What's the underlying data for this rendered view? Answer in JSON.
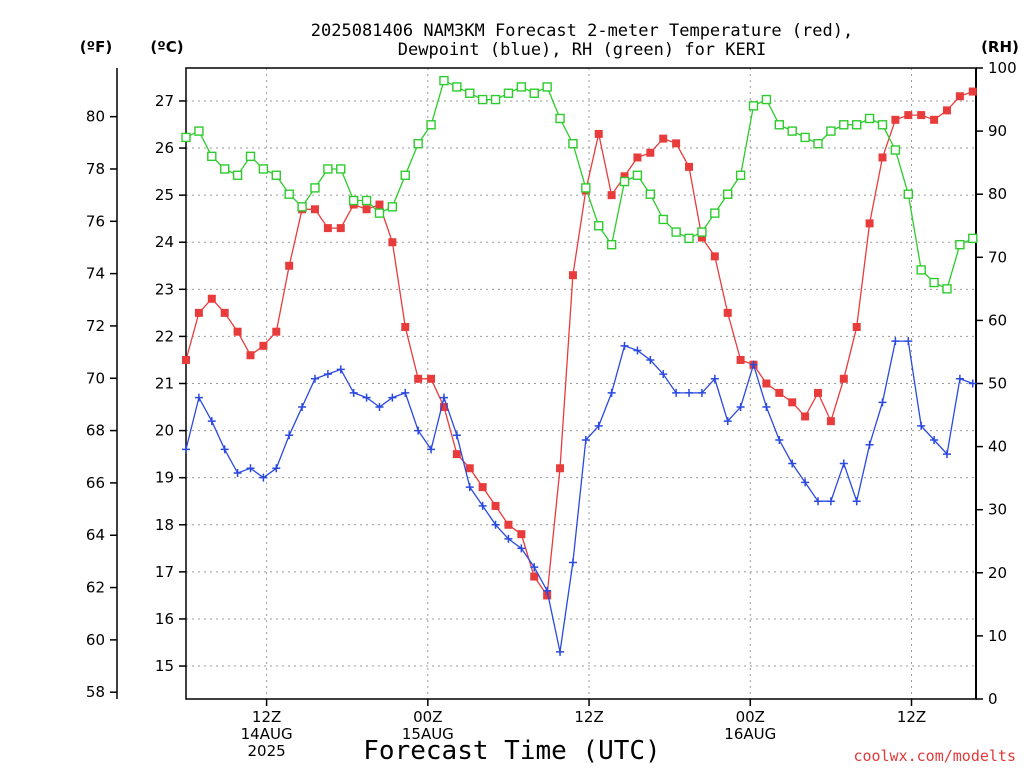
{
  "chart_data": {
    "type": "line",
    "title_line1": "2025081406 NAM3KM Forecast 2-meter Temperature (red),",
    "title_line2": "Dewpoint (blue), RH (green) for KERI",
    "xlabel": "Forecast Time (UTC)",
    "credit": "coolwx.com/modelts",
    "axes": {
      "fahrenheit": {
        "unit_label": "(ºF)",
        "ticks": [
          58,
          60,
          62,
          64,
          66,
          68,
          70,
          72,
          74,
          76,
          78,
          80
        ]
      },
      "celsius": {
        "unit_label": "(ºC)",
        "ticks": [
          15,
          16,
          17,
          18,
          19,
          20,
          21,
          22,
          23,
          24,
          25,
          26,
          27
        ],
        "ylim": [
          14.3,
          27.7
        ]
      },
      "rh": {
        "unit_label": "(RH)",
        "ticks": [
          0,
          10,
          20,
          30,
          40,
          50,
          60,
          70,
          80,
          90,
          100
        ],
        "ylim": [
          0,
          100
        ]
      }
    },
    "x_range_hours": [
      13,
      62
    ],
    "x_ticks": [
      {
        "hour": 18,
        "lines": [
          "12Z",
          "14AUG",
          "2025"
        ]
      },
      {
        "hour": 28,
        "lines": [
          "00Z",
          "15AUG"
        ]
      },
      {
        "hour": 38,
        "lines": [
          "12Z"
        ]
      },
      {
        "hour": 48,
        "lines": [
          "00Z",
          "16AUG"
        ]
      },
      {
        "hour": 58,
        "lines": [
          "12Z"
        ]
      }
    ],
    "grid": true,
    "series": [
      {
        "name": "Temperature",
        "unit": "C",
        "color": "#e83c3c",
        "marker": "filled-square",
        "hours": [
          13,
          13.8,
          14.6,
          15.4,
          16.2,
          17,
          17.8,
          18.6,
          19.4,
          20.2,
          21,
          21.8,
          22.6,
          23.4,
          24.2,
          25,
          25.8,
          26.6,
          27.4,
          28.2,
          29,
          29.8,
          30.6,
          31.4,
          32.2,
          33,
          33.8,
          34.6,
          35.4,
          36.2,
          37,
          37.8,
          38.6,
          39.4,
          40.2,
          41,
          41.8,
          42.6,
          43.4,
          44.2,
          45,
          45.8,
          46.6,
          47.4,
          48.2,
          49,
          49.8,
          50.6,
          51.4,
          52.2,
          53,
          53.8,
          54.6,
          55.4,
          56.2,
          57,
          57.8,
          58.6,
          59.4,
          60.2,
          61,
          61.8
        ],
        "values": [
          21.5,
          22.5,
          22.8,
          22.5,
          22.1,
          21.6,
          21.8,
          22.1,
          23.5,
          24.7,
          24.7,
          24.3,
          24.3,
          24.8,
          24.7,
          24.8,
          24.0,
          22.2,
          21.1,
          21.1,
          20.5,
          19.5,
          19.2,
          18.8,
          18.4,
          18.0,
          17.8,
          16.9,
          16.5,
          19.2,
          23.3,
          25.1,
          26.3,
          25.0,
          25.4,
          25.8,
          25.9,
          26.2,
          26.1,
          25.6,
          24.1,
          23.7,
          22.5,
          21.5,
          21.4,
          21.0,
          20.8,
          20.6,
          20.3,
          20.8,
          20.2,
          21.1,
          22.2,
          24.4,
          25.8,
          26.6,
          26.7,
          26.7,
          26.6,
          26.8,
          27.1,
          27.2
        ]
      },
      {
        "name": "Dewpoint",
        "unit": "C",
        "color": "#2a49e0",
        "marker": "plus",
        "hours": [
          13,
          13.8,
          14.6,
          15.4,
          16.2,
          17,
          17.8,
          18.6,
          19.4,
          20.2,
          21,
          21.8,
          22.6,
          23.4,
          24.2,
          25,
          25.8,
          26.6,
          27.4,
          28.2,
          29,
          29.8,
          30.6,
          31.4,
          32.2,
          33,
          33.8,
          34.6,
          35.4,
          36.2,
          37,
          37.8,
          38.6,
          39.4,
          40.2,
          41,
          41.8,
          42.6,
          43.4,
          44.2,
          45,
          45.8,
          46.6,
          47.4,
          48.2,
          49,
          49.8,
          50.6,
          51.4,
          52.2,
          53,
          53.8,
          54.6,
          55.4,
          56.2,
          57,
          57.8,
          58.6,
          59.4,
          60.2,
          61,
          61.8
        ],
        "values": [
          19.6,
          20.7,
          20.2,
          19.6,
          19.1,
          19.2,
          19.0,
          19.2,
          19.9,
          20.5,
          21.1,
          21.2,
          21.3,
          20.8,
          20.7,
          20.5,
          20.7,
          20.8,
          20.0,
          19.6,
          20.7,
          19.9,
          18.8,
          18.4,
          18.0,
          17.7,
          17.5,
          17.1,
          16.6,
          15.3,
          17.2,
          19.8,
          20.1,
          20.8,
          21.8,
          21.7,
          21.5,
          21.2,
          20.8,
          20.8,
          20.8,
          21.1,
          20.2,
          20.5,
          21.4,
          20.5,
          19.8,
          19.3,
          18.9,
          18.5,
          18.5,
          19.3,
          18.5,
          19.7,
          20.6,
          21.9,
          21.9,
          20.1,
          19.8,
          19.5,
          21.1,
          21.0
        ]
      },
      {
        "name": "RH",
        "unit": "%",
        "color": "#2ccc2c",
        "marker": "open-square",
        "hours": [
          13,
          13.8,
          14.6,
          15.4,
          16.2,
          17,
          17.8,
          18.6,
          19.4,
          20.2,
          21,
          21.8,
          22.6,
          23.4,
          24.2,
          25,
          25.8,
          26.6,
          27.4,
          28.2,
          29,
          29.8,
          30.6,
          31.4,
          32.2,
          33,
          33.8,
          34.6,
          35.4,
          36.2,
          37,
          37.8,
          38.6,
          39.4,
          40.2,
          41,
          41.8,
          42.6,
          43.4,
          44.2,
          45,
          45.8,
          46.6,
          47.4,
          48.2,
          49,
          49.8,
          50.6,
          51.4,
          52.2,
          53,
          53.8,
          54.6,
          55.4,
          56.2,
          57,
          57.8,
          58.6,
          59.4,
          60.2,
          61,
          61.8
        ],
        "values": [
          89,
          90,
          86,
          84,
          83,
          86,
          84,
          83,
          80,
          78,
          81,
          84,
          84,
          79,
          79,
          77,
          78,
          83,
          88,
          91,
          98,
          97,
          96,
          95,
          95,
          96,
          97,
          96,
          97,
          92,
          88,
          81,
          75,
          72,
          82,
          83,
          80,
          76,
          74,
          73,
          74,
          77,
          80,
          83,
          94,
          95,
          91,
          90,
          89,
          88,
          90,
          91,
          91,
          92,
          91,
          87,
          80,
          68,
          66,
          65,
          72,
          73
        ]
      }
    ]
  }
}
